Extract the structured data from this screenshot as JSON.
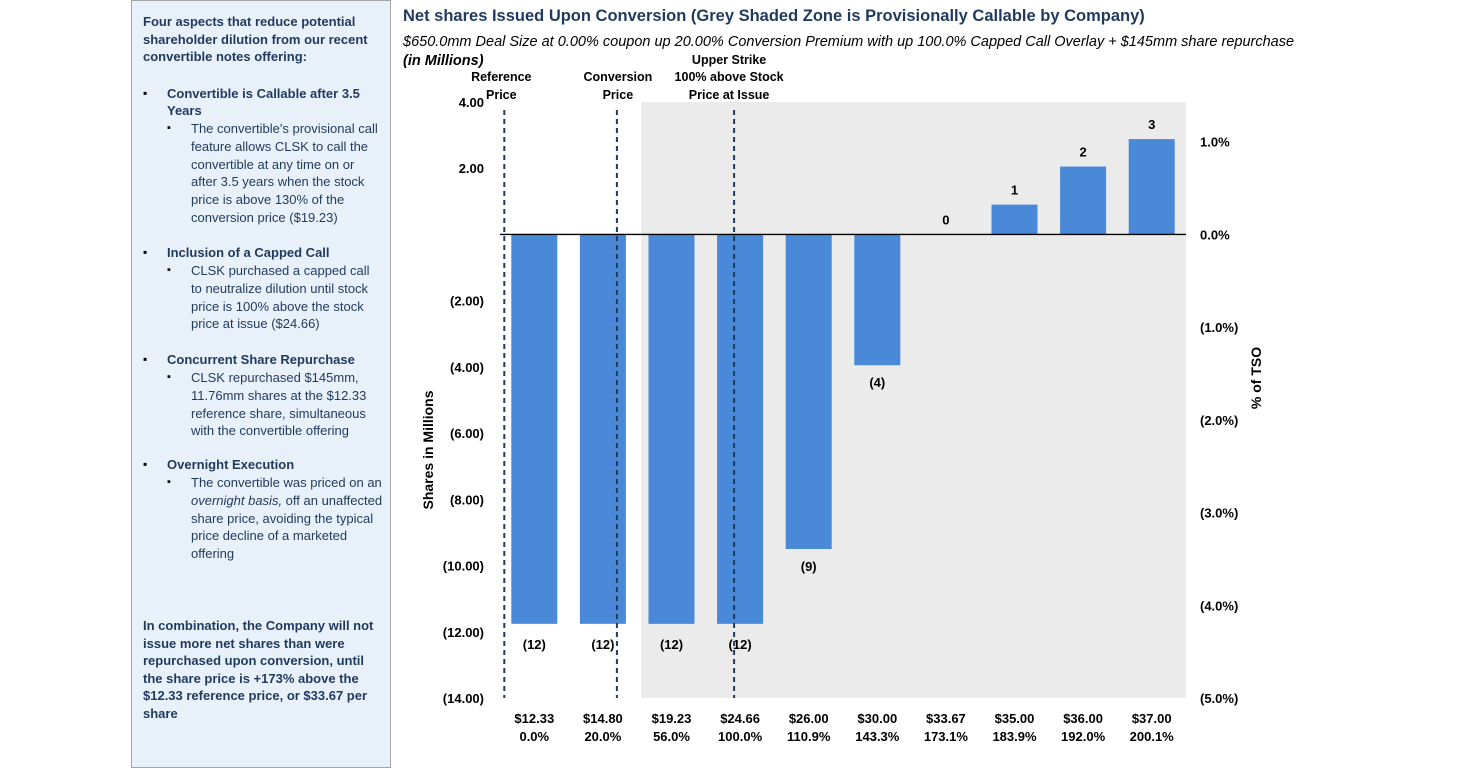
{
  "sidebar": {
    "intro": "Four aspects that reduce potential shareholder dilution from our recent convertible notes offering:",
    "sections": [
      {
        "title": "Convertible is Callable after 3.5 Years",
        "body": "The convertible's provisional call feature allows CLSK to call the convertible at any time on or after 3.5 years when the stock price is above 130% of the conversion price ($19.23)"
      },
      {
        "title": "Inclusion of a Capped Call",
        "body": "CLSK purchased a capped call to neutralize dilution until stock price is 100% above the stock price at issue ($24.66)"
      },
      {
        "title": "Concurrent Share Repurchase",
        "body": "CLSK repurchased $145mm, 11.76mm shares at the $12.33 reference share, simultaneous with the convertible offering"
      },
      {
        "title": "Overnight Execution",
        "body_pre": "The convertible was priced on an ",
        "body_italic": "overnight basis,",
        "body_post": " off an unaffected share price, avoiding the typical price decline of a marketed offering"
      }
    ],
    "conclusion": "In combination, the Company will not issue more net shares than were repurchased upon conversion, until the share price is +173% above the $12.33 reference price, or $33.67 per share"
  },
  "header": {
    "title": "Net shares Issued Upon Conversion (Grey Shaded Zone is Provisionally Callable by Company)",
    "subtitle": "$650.0mm Deal Size at 0.00% coupon up 20.00% Conversion Premium with up 100.0% Capped Call Overlay + $145mm share repurchase",
    "unit": "(in Millions)"
  },
  "chart_data": {
    "type": "bar",
    "categories": [
      "$12.33",
      "$14.80",
      "$19.23",
      "$24.66",
      "$26.00",
      "$30.00",
      "$33.67",
      "$35.00",
      "$36.00",
      "$37.00"
    ],
    "category_pct": [
      "0.0%",
      "20.0%",
      "56.0%",
      "100.0%",
      "110.9%",
      "143.3%",
      "173.1%",
      "183.9%",
      "192.0%",
      "200.1%"
    ],
    "values": [
      -11.76,
      -11.76,
      -11.76,
      -11.76,
      -9.5,
      -3.95,
      0,
      0.9,
      2.05,
      2.88
    ],
    "data_labels": [
      "(12)",
      "(12)",
      "(12)",
      "(12)",
      "(9)",
      "(4)",
      "0",
      "1",
      "2",
      "3"
    ],
    "ylabel": "Shares in Millions",
    "y2label": "% of TSO",
    "ylim": [
      -14,
      4
    ],
    "y_ticks": [
      4,
      2,
      0,
      -2,
      -4,
      -6,
      -8,
      -10,
      -12,
      -14
    ],
    "y_tick_labels": [
      "4.00",
      "2.00",
      "",
      "(2.00)",
      "(4.00)",
      "(6.00)",
      "(8.00)",
      "(10.00)",
      "(12.00)",
      "(14.00)"
    ],
    "y2_ticks": [
      1.0,
      0.0,
      -1.0,
      -2.0,
      -3.0,
      -4.0,
      -5.0
    ],
    "y2_tick_labels": [
      "1.0%",
      "0.0%",
      "(1.0%)",
      "(2.0%)",
      "(3.0%)",
      "(4.0%)",
      "(5.0%)"
    ],
    "y2lim": [
      -5.0,
      1.0
    ],
    "shaded_from_category": "$19.23",
    "reference_lines": [
      {
        "label": "Reference Price",
        "at": "$12.33"
      },
      {
        "label": "Conversion Price",
        "at": "$14.80"
      },
      {
        "label": "Upper Strike 100% above  Stock Price at Issue",
        "at": "$24.66"
      }
    ],
    "bar_color": "#4a89d8",
    "shade_color": "#ebebeb",
    "grid": false
  }
}
